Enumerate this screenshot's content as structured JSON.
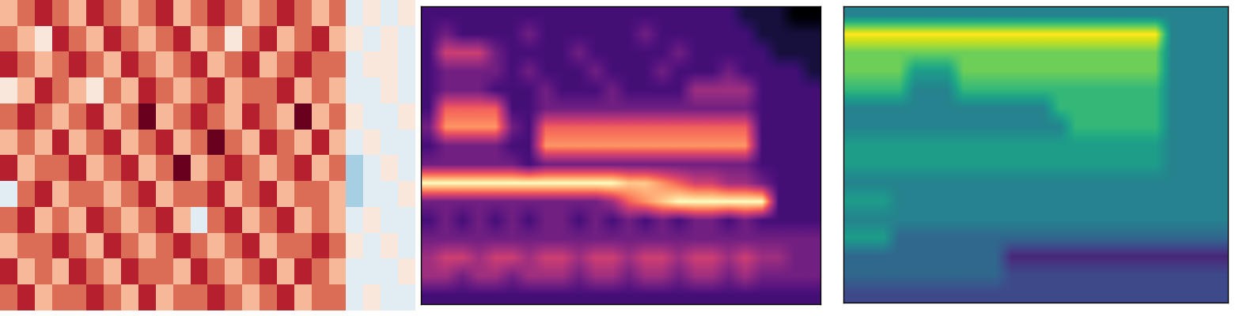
{
  "chart_data": [
    {
      "type": "heatmap",
      "tick_labels": false,
      "zlim": [
        0,
        9
      ],
      "cells": [
        [
          6,
          7,
          8,
          7,
          6,
          8,
          7,
          6,
          7,
          8,
          6,
          7,
          8,
          7,
          6,
          7,
          8,
          7,
          6,
          7,
          4,
          5,
          4,
          5
        ],
        [
          7,
          6,
          5,
          8,
          7,
          6,
          8,
          7,
          6,
          7,
          8,
          6,
          7,
          5,
          7,
          8,
          6,
          7,
          8,
          6,
          5,
          4,
          5,
          4
        ],
        [
          8,
          7,
          6,
          7,
          8,
          7,
          6,
          8,
          7,
          6,
          7,
          8,
          6,
          7,
          8,
          6,
          7,
          8,
          7,
          7,
          4,
          5,
          5,
          4
        ],
        [
          5,
          6,
          8,
          7,
          6,
          5,
          7,
          6,
          8,
          7,
          6,
          7,
          8,
          6,
          7,
          7,
          8,
          6,
          7,
          6,
          4,
          4,
          5,
          4
        ],
        [
          7,
          8,
          7,
          6,
          7,
          8,
          6,
          7,
          9,
          6,
          7,
          8,
          7,
          6,
          8,
          7,
          6,
          9,
          6,
          7,
          5,
          4,
          4,
          5
        ],
        [
          6,
          7,
          6,
          8,
          6,
          7,
          8,
          6,
          7,
          8,
          6,
          7,
          9,
          7,
          6,
          8,
          7,
          6,
          8,
          6,
          4,
          5,
          4,
          4
        ],
        [
          8,
          6,
          7,
          7,
          8,
          6,
          7,
          8,
          6,
          7,
          9,
          6,
          7,
          8,
          7,
          6,
          7,
          8,
          6,
          7,
          3,
          4,
          5,
          4
        ],
        [
          4,
          7,
          8,
          6,
          7,
          7,
          6,
          7,
          8,
          6,
          7,
          7,
          8,
          6,
          7,
          8,
          6,
          7,
          7,
          6,
          3,
          4,
          4,
          5
        ],
        [
          7,
          8,
          6,
          7,
          6,
          8,
          7,
          6,
          7,
          8,
          6,
          4,
          7,
          8,
          6,
          7,
          8,
          6,
          7,
          6,
          4,
          5,
          4,
          4
        ],
        [
          6,
          7,
          7,
          8,
          7,
          6,
          8,
          7,
          6,
          7,
          8,
          7,
          6,
          7,
          8,
          6,
          7,
          7,
          8,
          7,
          5,
          4,
          5,
          4
        ],
        [
          8,
          6,
          7,
          6,
          8,
          7,
          6,
          8,
          7,
          7,
          6,
          8,
          7,
          6,
          7,
          8,
          6,
          8,
          7,
          6,
          4,
          4,
          4,
          5
        ],
        [
          7,
          8,
          6,
          7,
          7,
          8,
          7,
          6,
          8,
          6,
          7,
          7,
          8,
          7,
          6,
          7,
          8,
          6,
          7,
          7,
          4,
          5,
          4,
          4
        ]
      ]
    },
    {
      "type": "heatmap",
      "tick_labels": false,
      "zlim": [
        0,
        9
      ],
      "cells": [
        [
          2,
          2,
          2,
          2,
          2,
          2,
          2,
          2,
          2,
          2,
          2,
          2,
          2,
          2,
          2,
          2,
          2,
          2,
          2,
          1,
          1,
          1,
          0,
          0
        ],
        [
          2,
          3,
          2,
          2,
          2,
          2,
          3,
          2,
          2,
          2,
          2,
          2,
          2,
          3,
          2,
          2,
          2,
          2,
          2,
          2,
          1,
          1,
          1,
          1
        ],
        [
          2,
          5,
          5,
          5,
          3,
          2,
          2,
          2,
          2,
          3,
          2,
          2,
          2,
          2,
          2,
          3,
          2,
          2,
          2,
          2,
          2,
          1,
          1,
          1
        ],
        [
          2,
          3,
          3,
          3,
          3,
          2,
          3,
          2,
          2,
          2,
          3,
          2,
          2,
          2,
          3,
          2,
          2,
          2,
          3,
          2,
          2,
          2,
          2,
          1
        ],
        [
          2,
          3,
          3,
          3,
          2,
          2,
          2,
          3,
          2,
          2,
          2,
          3,
          2,
          2,
          2,
          2,
          4,
          4,
          4,
          4,
          2,
          2,
          2,
          2
        ],
        [
          2,
          6,
          6,
          6,
          6,
          2,
          2,
          3,
          3,
          3,
          3,
          3,
          3,
          3,
          3,
          3,
          3,
          3,
          3,
          3,
          2,
          2,
          2,
          2
        ],
        [
          3,
          7,
          7,
          7,
          7,
          3,
          2,
          6,
          6,
          6,
          6,
          6,
          6,
          6,
          6,
          6,
          6,
          6,
          6,
          6,
          2,
          2,
          2,
          2
        ],
        [
          2,
          3,
          3,
          3,
          3,
          2,
          2,
          7,
          7,
          7,
          7,
          7,
          7,
          7,
          7,
          7,
          7,
          7,
          7,
          7,
          2,
          2,
          2,
          2
        ],
        [
          3,
          3,
          3,
          3,
          3,
          3,
          2,
          3,
          3,
          3,
          3,
          3,
          3,
          3,
          3,
          3,
          3,
          3,
          3,
          3,
          2,
          2,
          2,
          2
        ],
        [
          9,
          9,
          9,
          9,
          9,
          9,
          9,
          9,
          9,
          9,
          9,
          9,
          8,
          8,
          7,
          6,
          5,
          5,
          4,
          4,
          3,
          2,
          2,
          2
        ],
        [
          3,
          3,
          3,
          3,
          3,
          3,
          3,
          3,
          3,
          3,
          3,
          4,
          6,
          7,
          8,
          9,
          9,
          9,
          9,
          9,
          9,
          2,
          2,
          2
        ],
        [
          2,
          3,
          2,
          3,
          2,
          3,
          2,
          3,
          3,
          2,
          3,
          2,
          3,
          2,
          3,
          2,
          3,
          3,
          2,
          3,
          2,
          2,
          2,
          2
        ],
        [
          3,
          3,
          3,
          3,
          3,
          3,
          3,
          3,
          3,
          3,
          3,
          3,
          3,
          3,
          3,
          3,
          3,
          3,
          3,
          3,
          3,
          3,
          3,
          3
        ],
        [
          4,
          5,
          5,
          4,
          5,
          5,
          4,
          5,
          5,
          4,
          5,
          5,
          4,
          5,
          5,
          4,
          5,
          5,
          4,
          5,
          4,
          4,
          3,
          3
        ],
        [
          4,
          4,
          3,
          4,
          4,
          3,
          4,
          4,
          4,
          3,
          4,
          4,
          3,
          4,
          4,
          3,
          4,
          4,
          3,
          4,
          3,
          3,
          3,
          3
        ],
        [
          2,
          2,
          2,
          2,
          2,
          2,
          2,
          2,
          2,
          2,
          2,
          2,
          2,
          2,
          2,
          2,
          2,
          2,
          2,
          2,
          2,
          2,
          2,
          2
        ]
      ]
    },
    {
      "type": "heatmap",
      "tick_labels": false,
      "zlim": [
        0,
        9
      ],
      "cells": [
        [
          4,
          4,
          4,
          4,
          4,
          4,
          4,
          4,
          4,
          4,
          4,
          4,
          4,
          4,
          4,
          4,
          4,
          4,
          4,
          4,
          4,
          4,
          4,
          4
        ],
        [
          9,
          9,
          9,
          9,
          9,
          9,
          9,
          9,
          9,
          9,
          9,
          9,
          9,
          9,
          9,
          9,
          9,
          9,
          9,
          9,
          4,
          4,
          4,
          4
        ],
        [
          7,
          7,
          7,
          7,
          7,
          7,
          7,
          7,
          7,
          7,
          7,
          7,
          7,
          7,
          7,
          7,
          7,
          7,
          7,
          7,
          4,
          4,
          4,
          4
        ],
        [
          7,
          7,
          7,
          7,
          5,
          5,
          5,
          7,
          7,
          7,
          7,
          7,
          7,
          7,
          7,
          7,
          7,
          7,
          7,
          7,
          4,
          4,
          4,
          4
        ],
        [
          6,
          6,
          6,
          6,
          4,
          4,
          4,
          6,
          6,
          6,
          6,
          6,
          6,
          6,
          6,
          6,
          6,
          6,
          6,
          6,
          4,
          4,
          4,
          4
        ],
        [
          4,
          4,
          4,
          4,
          4,
          4,
          4,
          4,
          4,
          4,
          4,
          4,
          4,
          6,
          6,
          6,
          6,
          6,
          6,
          6,
          4,
          4,
          4,
          4
        ],
        [
          4,
          4,
          4,
          4,
          4,
          4,
          4,
          4,
          4,
          4,
          4,
          4,
          4,
          4,
          6,
          6,
          6,
          6,
          6,
          6,
          4,
          4,
          4,
          4
        ],
        [
          5,
          5,
          5,
          5,
          5,
          5,
          5,
          5,
          5,
          5,
          5,
          5,
          5,
          5,
          5,
          5,
          5,
          5,
          5,
          5,
          4,
          4,
          4,
          4
        ],
        [
          5,
          5,
          5,
          5,
          5,
          5,
          5,
          5,
          5,
          5,
          5,
          5,
          5,
          5,
          5,
          5,
          5,
          5,
          5,
          5,
          4,
          4,
          4,
          4
        ],
        [
          4,
          4,
          4,
          4,
          4,
          4,
          4,
          4,
          4,
          4,
          4,
          4,
          4,
          4,
          4,
          4,
          4,
          4,
          4,
          4,
          4,
          4,
          4,
          4
        ],
        [
          5,
          5,
          5,
          4,
          4,
          4,
          4,
          4,
          4,
          4,
          4,
          4,
          4,
          4,
          4,
          4,
          4,
          4,
          4,
          4,
          4,
          4,
          4,
          4
        ],
        [
          4,
          4,
          4,
          4,
          4,
          4,
          4,
          4,
          4,
          4,
          4,
          4,
          4,
          4,
          4,
          4,
          4,
          4,
          4,
          4,
          4,
          4,
          4,
          4
        ],
        [
          5,
          5,
          5,
          3,
          3,
          3,
          3,
          3,
          3,
          3,
          3,
          3,
          3,
          3,
          3,
          3,
          3,
          3,
          3,
          3,
          3,
          3,
          3,
          3
        ],
        [
          3,
          3,
          3,
          3,
          3,
          3,
          3,
          3,
          3,
          3,
          1,
          1,
          1,
          1,
          1,
          1,
          1,
          1,
          1,
          1,
          1,
          1,
          1,
          1
        ],
        [
          3,
          3,
          3,
          3,
          3,
          3,
          3,
          3,
          3,
          3,
          2,
          2,
          2,
          2,
          2,
          2,
          2,
          2,
          2,
          2,
          2,
          2,
          2,
          2
        ],
        [
          2,
          2,
          2,
          2,
          2,
          2,
          2,
          2,
          2,
          2,
          2,
          2,
          2,
          2,
          2,
          2,
          2,
          2,
          2,
          2,
          2,
          2,
          2,
          2
        ]
      ]
    }
  ]
}
